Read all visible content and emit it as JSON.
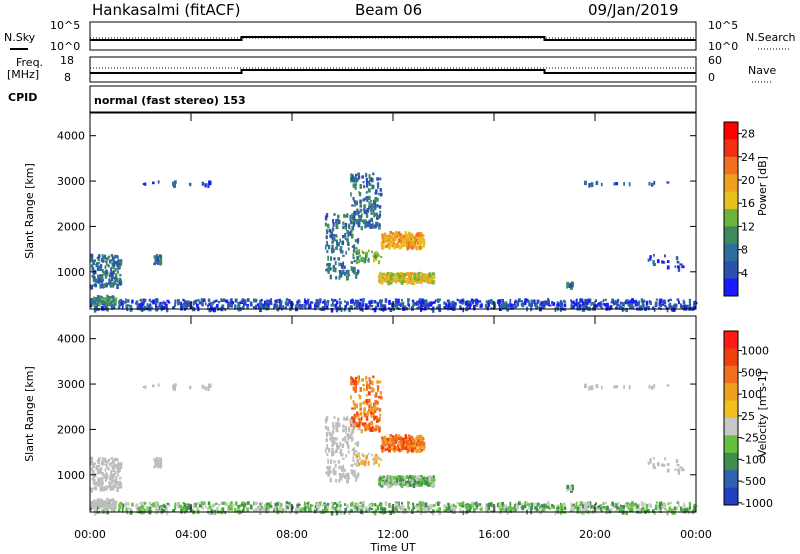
{
  "header": {
    "station": "Hankasalmi (fitACF)",
    "beam": "Beam 06",
    "date": "09/Jan/2019"
  },
  "aux_panels": {
    "nsky_label": "N.Sky",
    "nsky_ticks": [
      "10^5",
      "10^0"
    ],
    "nsearch_label": "N.Search",
    "nsearch_ticks": [
      "10^5",
      "10^0"
    ],
    "freq_label_line1": "Freq.",
    "freq_label_line2": "[MHz]",
    "freq_ticks": [
      "18",
      "8"
    ],
    "nave_label": "Nave",
    "nave_ticks": [
      "60",
      "0"
    ],
    "cpid_label": "CPID",
    "cpid_text": "normal (fast stereo) 153"
  },
  "colors": {
    "power_scale": [
      "#1a1aff",
      "#2d4fb0",
      "#2e6e9c",
      "#3d8a5a",
      "#6cb43a",
      "#e8c020",
      "#f0a020",
      "#f07020",
      "#f03010",
      "#ff0000"
    ],
    "velocity_scale": [
      "#2040c0",
      "#3060b0",
      "#3f8f4f",
      "#66c040",
      "#c8c8c8",
      "#f0c020",
      "#f0a020",
      "#f07020",
      "#f04010",
      "#ff1a1a"
    ],
    "ground_scatter": "#bdbdbd"
  },
  "chart_data": [
    {
      "type": "heatmap",
      "name": "power",
      "ylabel": "Slant Range [km]",
      "ylim": [
        180,
        4500
      ],
      "yticks": [
        "1000",
        "2000",
        "3000",
        "4000"
      ],
      "colorbar_label": "Power [dB]",
      "colorbar_ticks": [
        "4",
        "8",
        "12",
        "16",
        "20",
        "24",
        "28"
      ],
      "clim": [
        0,
        30
      ]
    },
    {
      "type": "heatmap",
      "name": "velocity",
      "ylabel": "Slant Range [km]",
      "ylim": [
        180,
        4500
      ],
      "yticks": [
        "1000",
        "2000",
        "3000",
        "4000"
      ],
      "colorbar_label": "Velocity [m s-1]",
      "colorbar_ticks": [
        "1000",
        "500",
        "100",
        "25",
        "-25",
        "-100",
        "-500",
        "-1000"
      ],
      "clim": [
        -1000,
        1000
      ]
    }
  ],
  "xaxis": {
    "label": "Time UT",
    "ticks": [
      "00:00",
      "04:00",
      "08:00",
      "12:00",
      "16:00",
      "20:00",
      "00:00"
    ]
  }
}
